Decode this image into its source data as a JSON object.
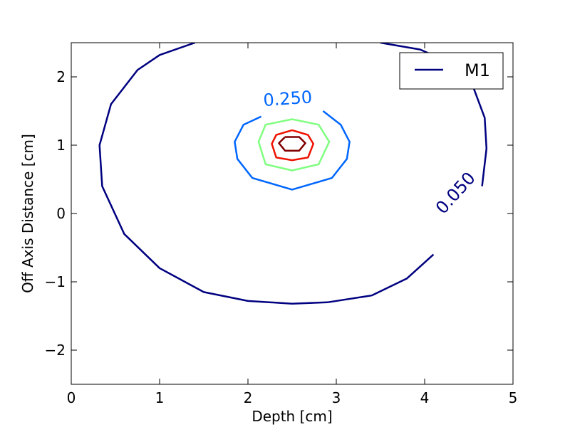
{
  "chart_data": {
    "type": "contour",
    "title": "",
    "xlabel": "Depth [cm]",
    "ylabel": "Off Axis Distance [cm]",
    "xlim": [
      0,
      5
    ],
    "ylim": [
      -2.5,
      2.5
    ],
    "xticks": [
      0,
      1,
      2,
      3,
      4,
      5
    ],
    "yticks": [
      -2,
      -1,
      0,
      1,
      2
    ],
    "xtick_labels": [
      "0",
      "1",
      "2",
      "3",
      "4",
      "5"
    ],
    "ytick_labels": [
      "−2",
      "−1",
      "0",
      "1",
      "2"
    ],
    "grid": false,
    "legend": {
      "position": "top-right",
      "entries": [
        {
          "name": "M1",
          "color": "#000080"
        }
      ]
    },
    "series": [
      {
        "name": "M1",
        "contours": [
          {
            "level": 0.05,
            "label": "0.050",
            "label_at": [
              4.35,
              0.3
            ],
            "label_rotation": -48,
            "color": "#000080",
            "points": [
              [
                4.1,
                -0.6
              ],
              [
                3.8,
                -0.95
              ],
              [
                3.4,
                -1.2
              ],
              [
                2.9,
                -1.3
              ],
              [
                2.5,
                -1.32
              ],
              [
                2.0,
                -1.28
              ],
              [
                1.5,
                -1.15
              ],
              [
                1.0,
                -0.8
              ],
              [
                0.6,
                -0.3
              ],
              [
                0.35,
                0.4
              ],
              [
                0.32,
                1.0
              ],
              [
                0.45,
                1.6
              ],
              [
                0.75,
                2.1
              ],
              [
                1.0,
                2.32
              ],
              [
                1.4,
                2.5
              ]
            ],
            "points2": [
              [
                3.5,
                2.5
              ],
              [
                3.95,
                2.4
              ],
              [
                4.3,
                2.2
              ],
              [
                4.55,
                1.85
              ],
              [
                4.68,
                1.4
              ],
              [
                4.7,
                0.95
              ],
              [
                4.65,
                0.4
              ]
            ]
          },
          {
            "level": 0.25,
            "label": "0.250",
            "label_at": [
              2.45,
              1.68
            ],
            "label_rotation": -4,
            "color": "#0066ff",
            "points": [
              [
                2.15,
                1.42
              ],
              [
                1.95,
                1.3
              ],
              [
                1.85,
                1.05
              ],
              [
                1.88,
                0.8
              ],
              [
                2.05,
                0.52
              ],
              [
                2.5,
                0.35
              ],
              [
                2.95,
                0.52
              ],
              [
                3.12,
                0.8
              ],
              [
                3.15,
                1.05
              ],
              [
                3.05,
                1.3
              ],
              [
                2.85,
                1.5
              ]
            ]
          },
          {
            "level": 0.5,
            "label": "",
            "color": "#80ff80",
            "points": [
              [
                2.5,
                1.38
              ],
              [
                2.8,
                1.3
              ],
              [
                2.92,
                1.05
              ],
              [
                2.8,
                0.72
              ],
              [
                2.5,
                0.63
              ],
              [
                2.2,
                0.72
              ],
              [
                2.12,
                1.05
              ],
              [
                2.2,
                1.3
              ],
              [
                2.5,
                1.38
              ]
            ]
          },
          {
            "level": 0.75,
            "label": "",
            "color": "#ee1100",
            "points": [
              [
                2.5,
                1.22
              ],
              [
                2.68,
                1.15
              ],
              [
                2.74,
                1.02
              ],
              [
                2.68,
                0.82
              ],
              [
                2.5,
                0.78
              ],
              [
                2.32,
                0.82
              ],
              [
                2.27,
                1.02
              ],
              [
                2.32,
                1.15
              ],
              [
                2.5,
                1.22
              ]
            ]
          },
          {
            "level": 0.95,
            "label": "",
            "color": "#800000",
            "points": [
              [
                2.42,
                1.12
              ],
              [
                2.58,
                1.12
              ],
              [
                2.65,
                1.03
              ],
              [
                2.58,
                0.92
              ],
              [
                2.42,
                0.92
              ],
              [
                2.35,
                1.03
              ],
              [
                2.42,
                1.12
              ]
            ]
          }
        ]
      }
    ]
  }
}
